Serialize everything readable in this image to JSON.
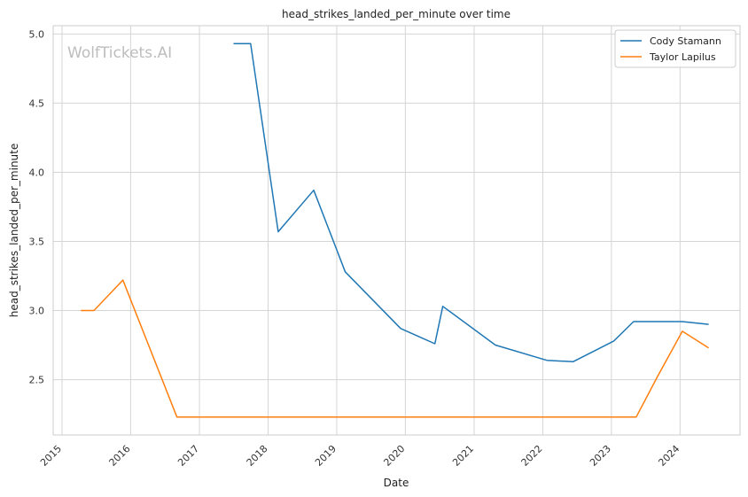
{
  "chart_data": {
    "type": "line",
    "title": "head_strikes_landed_per_minute over time",
    "xlabel": "Date",
    "ylabel": "head_strikes_landed_per_minute",
    "watermark": "WolfTickets.AI",
    "x_ticks": [
      "2015",
      "2016",
      "2017",
      "2018",
      "2019",
      "2020",
      "2021",
      "2022",
      "2023",
      "2024"
    ],
    "y_ticks": [
      "2.5",
      "3.0",
      "3.5",
      "4.0",
      "4.5",
      "5.0"
    ],
    "xlim": [
      "2014-11-15",
      "2024-11-15"
    ],
    "ylim": [
      2.1,
      5.06
    ],
    "grid": true,
    "legend_position": "top-right",
    "series": [
      {
        "name": "Cody Stamann",
        "color": "#1f77b4",
        "points": [
          [
            "2017-07-01",
            4.93
          ],
          [
            "2017-09-30",
            4.93
          ],
          [
            "2018-02-24",
            3.57
          ],
          [
            "2018-09-01",
            3.87
          ],
          [
            "2019-02-15",
            3.28
          ],
          [
            "2019-12-07",
            2.87
          ],
          [
            "2020-06-06",
            2.76
          ],
          [
            "2020-07-18",
            3.03
          ],
          [
            "2021-04-24",
            2.75
          ],
          [
            "2022-01-22",
            2.64
          ],
          [
            "2022-06-11",
            2.63
          ],
          [
            "2023-01-14",
            2.78
          ],
          [
            "2023-04-29",
            2.92
          ],
          [
            "2024-01-13",
            2.92
          ],
          [
            "2024-06-01",
            2.9
          ]
        ]
      },
      {
        "name": "Taylor Lapilus",
        "color": "#ff7f0e",
        "points": [
          [
            "2015-04-11",
            3.0
          ],
          [
            "2015-06-20",
            3.0
          ],
          [
            "2015-11-21",
            3.22
          ],
          [
            "2016-09-03",
            2.23
          ],
          [
            "2023-05-13",
            2.23
          ],
          [
            "2023-09-02",
            2.52
          ],
          [
            "2024-01-13",
            2.85
          ],
          [
            "2024-06-01",
            2.73
          ]
        ]
      }
    ]
  }
}
